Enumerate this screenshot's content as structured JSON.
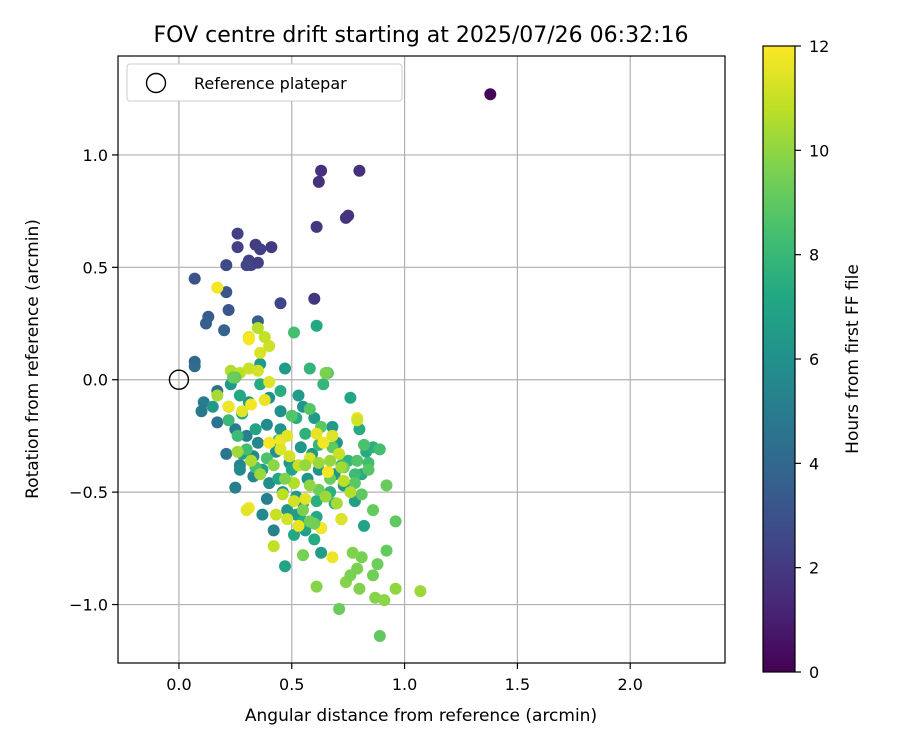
{
  "chart_data": {
    "type": "scatter",
    "title": "FOV centre drift starting at 2025/07/26 06:32:16",
    "xlabel": "Angular distance from reference (arcmin)",
    "ylabel": "Rotation from reference (arcmin)",
    "xlim": [
      -0.27,
      2.42
    ],
    "ylim": [
      -1.26,
      1.44
    ],
    "x_ticks": [
      0.0,
      0.5,
      1.0,
      1.5,
      2.0
    ],
    "x_tick_labels": [
      "0.0",
      "0.5",
      "1.0",
      "1.5",
      "2.0"
    ],
    "y_ticks": [
      -1.0,
      -0.5,
      0.0,
      0.5,
      1.0
    ],
    "y_tick_labels": [
      "−1.0",
      "−0.5",
      "0.0",
      "0.5",
      "1.0"
    ],
    "grid": true,
    "legend": {
      "placement": "top-left",
      "entries": [
        {
          "label": "Reference platepar",
          "marker": "open-circle"
        }
      ]
    },
    "reference_point": {
      "x": 0.0,
      "y": 0.0
    },
    "colorbar": {
      "label": "Hours from first FF file",
      "colormap": "viridis",
      "range": [
        0,
        12
      ],
      "ticks": [
        0,
        2,
        4,
        6,
        8,
        10,
        12
      ],
      "tick_labels": [
        "0",
        "2",
        "4",
        "6",
        "8",
        "10",
        "12"
      ]
    },
    "points_xyc": [
      [
        1.38,
        1.27,
        0.2
      ],
      [
        0.63,
        0.93,
        1.6
      ],
      [
        0.8,
        0.93,
        1.7
      ],
      [
        0.62,
        0.88,
        1.7
      ],
      [
        0.75,
        0.73,
        1.8
      ],
      [
        0.74,
        0.72,
        1.8
      ],
      [
        0.61,
        0.68,
        1.9
      ],
      [
        0.6,
        0.36,
        1.9
      ],
      [
        0.41,
        0.59,
        2.0
      ],
      [
        0.34,
        0.6,
        2.0
      ],
      [
        0.26,
        0.65,
        2.3
      ],
      [
        0.26,
        0.59,
        2.3
      ],
      [
        0.36,
        0.58,
        2.2
      ],
      [
        0.31,
        0.53,
        2.2
      ],
      [
        0.32,
        0.51,
        2.4
      ],
      [
        0.35,
        0.52,
        2.3
      ],
      [
        0.3,
        0.51,
        2.5
      ],
      [
        0.21,
        0.51,
        2.7
      ],
      [
        0.07,
        0.45,
        3.0
      ],
      [
        0.21,
        0.39,
        3.2
      ],
      [
        0.45,
        0.34,
        2.4
      ],
      [
        0.22,
        0.31,
        3.2
      ],
      [
        0.13,
        0.28,
        3.4
      ],
      [
        0.12,
        0.25,
        3.6
      ],
      [
        0.35,
        0.26,
        3.6
      ],
      [
        0.2,
        0.22,
        3.8
      ],
      [
        0.07,
        0.08,
        4.0
      ],
      [
        0.07,
        0.06,
        4.2
      ],
      [
        0.61,
        0.24,
        7.2
      ],
      [
        0.51,
        0.21,
        8.4
      ],
      [
        0.58,
        0.05,
        7.8
      ],
      [
        0.66,
        0.03,
        8.8
      ],
      [
        0.64,
        -0.02,
        7.9
      ],
      [
        0.17,
        -0.05,
        4.6
      ],
      [
        0.11,
        -0.1,
        5.0
      ],
      [
        0.1,
        -0.14,
        4.8
      ],
      [
        0.17,
        -0.19,
        4.5
      ],
      [
        0.25,
        -0.22,
        4.9
      ],
      [
        0.3,
        -0.25,
        5.1
      ],
      [
        0.21,
        -0.33,
        4.7
      ],
      [
        0.27,
        -0.38,
        5.3
      ],
      [
        0.25,
        -0.48,
        5.1
      ],
      [
        0.39,
        -0.53,
        5.2
      ],
      [
        0.42,
        -0.67,
        5.3
      ],
      [
        0.37,
        -0.6,
        5.6
      ],
      [
        0.27,
        -0.4,
        5.6
      ],
      [
        0.33,
        -0.43,
        5.4
      ],
      [
        0.4,
        -0.46,
        5.8
      ],
      [
        0.46,
        -0.5,
        6.0
      ],
      [
        0.48,
        -0.58,
        6.2
      ],
      [
        0.52,
        -0.6,
        6.6
      ],
      [
        0.56,
        -0.67,
        6.8
      ],
      [
        0.61,
        -0.61,
        7.2
      ],
      [
        0.63,
        -0.66,
        6.9
      ],
      [
        0.51,
        -0.69,
        7.2
      ],
      [
        0.47,
        -0.83,
        7.0
      ],
      [
        0.63,
        -0.77,
        6.6
      ],
      [
        0.55,
        -0.55,
        6.5
      ],
      [
        0.52,
        -0.52,
        6.4
      ],
      [
        0.57,
        -0.44,
        6.1
      ],
      [
        0.62,
        -0.4,
        6.0
      ],
      [
        0.69,
        -0.42,
        6.3
      ],
      [
        0.73,
        -0.47,
        6.5
      ],
      [
        0.78,
        -0.54,
        6.7
      ],
      [
        0.82,
        -0.65,
        6.9
      ],
      [
        0.7,
        -0.28,
        6.3
      ],
      [
        0.68,
        -0.21,
        6.5
      ],
      [
        0.6,
        -0.17,
        6.5
      ],
      [
        0.55,
        -0.12,
        6.3
      ],
      [
        0.45,
        -0.14,
        6.0
      ],
      [
        0.39,
        -0.2,
        5.7
      ],
      [
        0.35,
        -0.28,
        5.5
      ],
      [
        0.33,
        -0.34,
        5.6
      ],
      [
        0.43,
        -0.32,
        5.9
      ],
      [
        0.49,
        -0.37,
        6.2
      ],
      [
        0.54,
        -0.3,
        6.3
      ],
      [
        0.59,
        -0.33,
        6.5
      ],
      [
        0.45,
        -0.22,
        6.2
      ],
      [
        0.4,
        -0.08,
        6.0
      ],
      [
        0.31,
        -0.1,
        6.3
      ],
      [
        0.23,
        -0.02,
        6.4
      ],
      [
        0.15,
        -0.12,
        6.4
      ],
      [
        0.36,
        0.07,
        6.5
      ],
      [
        0.47,
        0.05,
        6.5
      ],
      [
        0.53,
        -0.07,
        6.6
      ],
      [
        0.76,
        -0.08,
        7.1
      ],
      [
        0.8,
        -0.22,
        7.3
      ],
      [
        0.83,
        -0.32,
        7.3
      ],
      [
        0.81,
        -0.42,
        7.4
      ],
      [
        0.86,
        -0.3,
        7.6
      ],
      [
        0.75,
        -0.36,
        7.7
      ],
      [
        0.67,
        -0.5,
        7.6
      ],
      [
        0.61,
        -0.54,
        7.5
      ],
      [
        0.55,
        -0.63,
        7.4
      ],
      [
        0.6,
        -0.71,
        7.3
      ],
      [
        0.72,
        -0.62,
        7.8
      ],
      [
        0.69,
        -0.55,
        7.6
      ],
      [
        0.5,
        -0.4,
        7.1
      ],
      [
        0.44,
        -0.44,
        7.1
      ],
      [
        0.37,
        -0.4,
        6.8
      ],
      [
        0.28,
        -0.33,
        6.8
      ],
      [
        0.34,
        -0.22,
        6.9
      ],
      [
        0.28,
        -0.15,
        6.9
      ],
      [
        0.22,
        -0.12,
        7.0
      ],
      [
        0.27,
        -0.07,
        7.2
      ],
      [
        0.36,
        -0.02,
        7.3
      ],
      [
        0.45,
        -0.05,
        7.4
      ],
      [
        0.52,
        -0.17,
        7.5
      ],
      [
        0.56,
        -0.24,
        7.6
      ],
      [
        0.62,
        -0.29,
        7.9
      ],
      [
        0.72,
        -0.38,
        8.0
      ],
      [
        0.78,
        -0.42,
        8.2
      ],
      [
        0.84,
        -0.37,
        8.3
      ],
      [
        0.89,
        -0.31,
        8.4
      ],
      [
        0.82,
        -0.29,
        8.5
      ],
      [
        0.79,
        -0.36,
        8.7
      ],
      [
        0.84,
        -0.4,
        8.8
      ],
      [
        0.78,
        -0.46,
        8.9
      ],
      [
        0.81,
        -0.51,
        9.0
      ],
      [
        0.86,
        -0.58,
        9.1
      ],
      [
        0.92,
        -0.47,
        9.2
      ],
      [
        0.96,
        -0.63,
        9.0
      ],
      [
        0.92,
        -0.76,
        9.1
      ],
      [
        0.88,
        -0.82,
        9.3
      ],
      [
        0.86,
        -0.87,
        9.4
      ],
      [
        0.81,
        -0.79,
        9.5
      ],
      [
        0.79,
        -0.84,
        9.6
      ],
      [
        0.77,
        -0.77,
        9.7
      ],
      [
        0.74,
        -0.9,
        9.8
      ],
      [
        0.76,
        -0.87,
        9.6
      ],
      [
        0.8,
        -0.93,
        9.7
      ],
      [
        0.87,
        -0.97,
        9.8
      ],
      [
        0.91,
        -0.98,
        9.9
      ],
      [
        0.96,
        -0.93,
        10.0
      ],
      [
        1.07,
        -0.94,
        10.2
      ],
      [
        0.89,
        -1.14,
        9.0
      ],
      [
        0.71,
        -1.02,
        9.2
      ],
      [
        0.61,
        -0.92,
        9.8
      ],
      [
        0.55,
        -0.78,
        9.5
      ],
      [
        0.58,
        -0.63,
        9.4
      ],
      [
        0.62,
        -0.49,
        9.3
      ],
      [
        0.67,
        -0.44,
        9.2
      ],
      [
        0.73,
        -0.39,
        9.1
      ],
      [
        0.68,
        -0.3,
        9.0
      ],
      [
        0.63,
        -0.21,
        8.9
      ],
      [
        0.58,
        -0.13,
        8.8
      ],
      [
        0.5,
        -0.16,
        8.7
      ],
      [
        0.44,
        -0.27,
        8.6
      ],
      [
        0.39,
        -0.35,
        8.5
      ],
      [
        0.34,
        -0.39,
        8.4
      ],
      [
        0.3,
        -0.31,
        8.3
      ],
      [
        0.26,
        -0.25,
        8.2
      ],
      [
        0.22,
        -0.18,
        8.1
      ],
      [
        0.17,
        -0.07,
        10.4
      ],
      [
        0.23,
        0.04,
        10.6
      ],
      [
        0.27,
        0.03,
        10.8
      ],
      [
        0.31,
        0.05,
        11.0
      ],
      [
        0.35,
        0.04,
        11.2
      ],
      [
        0.4,
        -0.01,
        11.4
      ],
      [
        0.38,
        -0.09,
        11.6
      ],
      [
        0.32,
        -0.11,
        11.8
      ],
      [
        0.28,
        -0.14,
        11.5
      ],
      [
        0.22,
        -0.12,
        11.7
      ],
      [
        0.36,
        0.12,
        11.3
      ],
      [
        0.4,
        0.15,
        11.1
      ],
      [
        0.38,
        0.19,
        10.9
      ],
      [
        0.35,
        0.23,
        10.7
      ],
      [
        0.31,
        0.19,
        11.5
      ],
      [
        0.31,
        0.18,
        11.9
      ],
      [
        0.17,
        0.41,
        11.8
      ],
      [
        0.4,
        -0.28,
        11.9
      ],
      [
        0.45,
        -0.27,
        11.7
      ],
      [
        0.48,
        -0.25,
        11.5
      ],
      [
        0.45,
        -0.31,
        11.4
      ],
      [
        0.49,
        -0.34,
        11.2
      ],
      [
        0.53,
        -0.38,
        11.0
      ],
      [
        0.58,
        -0.35,
        11.3
      ],
      [
        0.61,
        -0.24,
        11.6
      ],
      [
        0.64,
        -0.28,
        11.8
      ],
      [
        0.68,
        -0.25,
        11.4
      ],
      [
        0.71,
        -0.33,
        11.0
      ],
      [
        0.73,
        -0.45,
        10.8
      ],
      [
        0.76,
        -0.5,
        10.6
      ],
      [
        0.7,
        -0.55,
        10.4
      ],
      [
        0.65,
        -0.52,
        10.2
      ],
      [
        0.58,
        -0.47,
        10.0
      ],
      [
        0.51,
        -0.46,
        10.6
      ],
      [
        0.46,
        -0.51,
        10.8
      ],
      [
        0.43,
        -0.6,
        11.0
      ],
      [
        0.48,
        -0.62,
        11.2
      ],
      [
        0.53,
        -0.65,
        11.6
      ],
      [
        0.63,
        -0.66,
        11.9
      ],
      [
        0.72,
        -0.62,
        11.4
      ],
      [
        0.68,
        -0.79,
        11.7
      ],
      [
        0.31,
        -0.57,
        11.8
      ],
      [
        0.3,
        -0.58,
        11.5
      ],
      [
        0.42,
        -0.74,
        10.9
      ],
      [
        0.26,
        -0.32,
        10.3
      ],
      [
        0.32,
        -0.36,
        10.5
      ],
      [
        0.36,
        -0.42,
        10.2
      ],
      [
        0.42,
        -0.38,
        9.9
      ],
      [
        0.47,
        -0.44,
        9.7
      ],
      [
        0.55,
        -0.58,
        9.6
      ],
      [
        0.6,
        -0.64,
        9.4
      ],
      [
        0.79,
        -0.17,
        11.6
      ],
      [
        0.79,
        -0.18,
        11.2
      ],
      [
        0.66,
        -0.41,
        11.9
      ],
      [
        0.56,
        -0.53,
        11.5
      ],
      [
        0.51,
        -0.54,
        11.2
      ],
      [
        0.56,
        -0.38,
        10.1
      ],
      [
        0.62,
        -0.37,
        10.2
      ],
      [
        0.67,
        -0.36,
        10.1
      ],
      [
        0.72,
        -0.39,
        10.3
      ],
      [
        0.65,
        0.03,
        9.6
      ],
      [
        0.25,
        0.01,
        9.0
      ],
      [
        0.24,
        0.01,
        9.2
      ]
    ]
  }
}
